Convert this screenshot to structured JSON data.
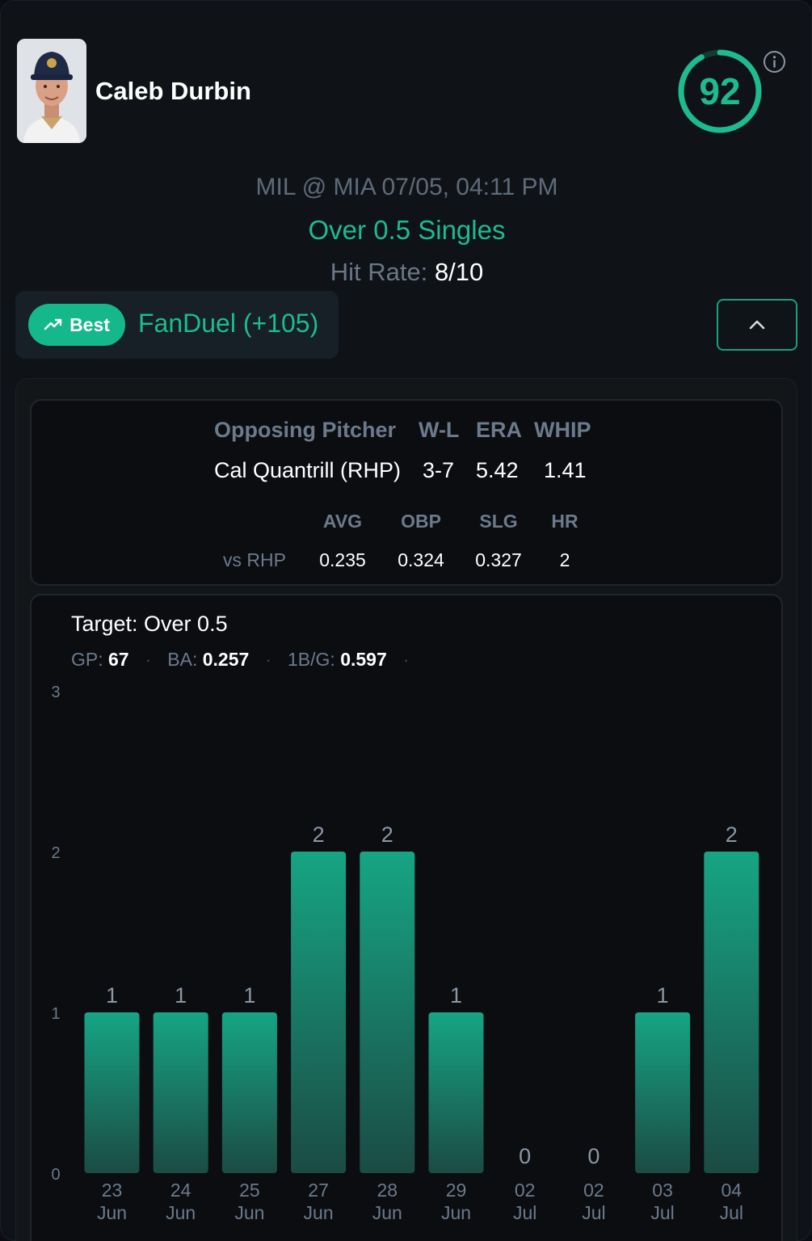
{
  "player": {
    "name": "Caleb Durbin",
    "score": "92"
  },
  "game": {
    "matchup": "MIL @ MIA 07/05, 04:11 PM",
    "market": "Over 0.5 Singles",
    "hit_rate_label": "Hit Rate:",
    "hit_rate_value": "8/10"
  },
  "book": {
    "best_label": "Best",
    "bookmaker": "FanDuel (+105)"
  },
  "pitcher": {
    "headers": [
      "Opposing Pitcher",
      "W-L",
      "ERA",
      "WHIP"
    ],
    "values": [
      "Cal Quantrill (RHP)",
      "3-7",
      "5.42",
      "1.41"
    ],
    "split_headers": [
      "AVG",
      "OBP",
      "SLG",
      "HR"
    ],
    "split_label": "vs RHP",
    "split_values": [
      "0.235",
      "0.324",
      "0.327",
      "2"
    ]
  },
  "summary": {
    "target": "Target: Over 0.5",
    "gp_label": "GP:",
    "gp_value": "67",
    "ba_label": "BA:",
    "ba_value": "0.257",
    "sg_label": "1B/G:",
    "sg_value": "0.597"
  },
  "colors": {
    "accent": "#1dbb8f",
    "bar_top": "#16a584",
    "bar_bottom": "#1b4b44",
    "muted": "#6c7a8c"
  },
  "chart_data": {
    "type": "bar",
    "categories": [
      [
        "23",
        "Jun"
      ],
      [
        "24",
        "Jun"
      ],
      [
        "25",
        "Jun"
      ],
      [
        "27",
        "Jun"
      ],
      [
        "28",
        "Jun"
      ],
      [
        "29",
        "Jun"
      ],
      [
        "02",
        "Jul"
      ],
      [
        "02",
        "Jul"
      ],
      [
        "03",
        "Jul"
      ],
      [
        "04",
        "Jul"
      ]
    ],
    "values": [
      1,
      1,
      1,
      2,
      2,
      1,
      0,
      0,
      1,
      2
    ],
    "y_ticks": [
      "0",
      "1",
      "2",
      "3"
    ],
    "ylim": [
      0,
      3
    ],
    "grid": false,
    "legend": "none"
  }
}
